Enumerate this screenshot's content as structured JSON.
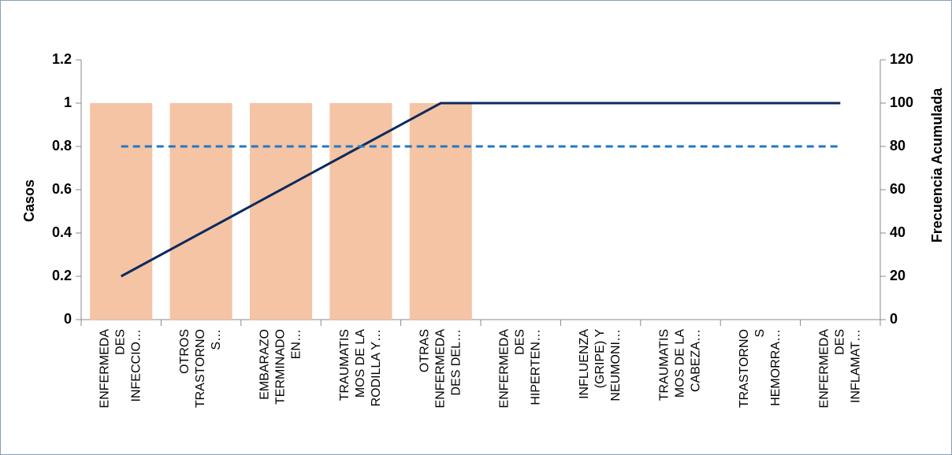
{
  "chart_data": {
    "type": "pareto",
    "y_label": "Casos",
    "y2_label": "Frecuencia Acumulada",
    "categories": [
      "ENFERMEDA\nDES\nINFECCIO…",
      "OTROS\nTRASTORNO\nS…",
      "EMBARAZO\nTERMINADO\nEN…",
      "TRAUMATIS\nMOS DE LA\nRODILLA Y…",
      "OTRAS\nENFERMEDA\nDES DEL…",
      "ENFERMEDA\nDES\nHIPERTEN…",
      "INFLUENZA\n(GRIPE) Y\nNEUMONI…",
      "TRAUMATIS\nMOS DE LA\nCABEZA…",
      "TRASTORNO\nS\nHEMORRA…",
      "ENFERMEDA\nDES\nINFLAMAT…"
    ],
    "series": [
      {
        "type": "bar",
        "color": "#f5c4a4",
        "values": [
          1,
          1,
          1,
          1,
          1,
          0,
          0,
          0,
          0,
          0
        ]
      },
      {
        "type": "line",
        "axis": "y2",
        "color": "#0d2a5e",
        "dashed": false,
        "values": [
          20,
          40,
          60,
          80,
          100,
          100,
          100,
          100,
          100,
          100
        ]
      },
      {
        "type": "line",
        "axis": "y2",
        "color": "#2277c4",
        "dashed": true,
        "values": [
          80,
          80,
          80,
          80,
          80,
          80,
          80,
          80,
          80,
          80
        ]
      }
    ],
    "ylim": [
      0,
      1.2
    ],
    "yticks": [
      0,
      0.2,
      0.4,
      0.6,
      0.8,
      1,
      1.2
    ],
    "y2lim": [
      0,
      120
    ],
    "y2ticks": [
      0,
      20,
      40,
      60,
      80,
      100,
      120
    ]
  }
}
